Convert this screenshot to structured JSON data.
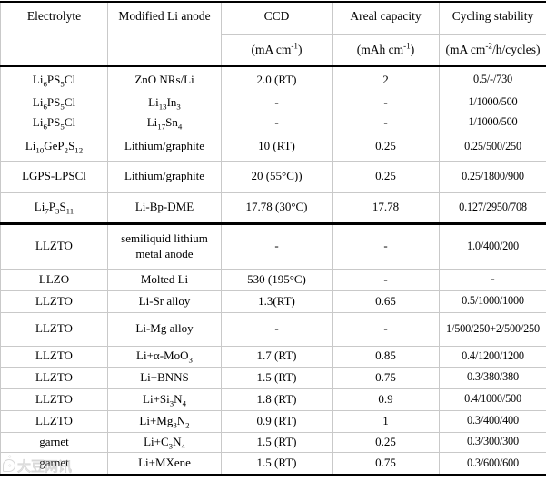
{
  "table": {
    "columns": [
      {
        "label": "Electrolyte",
        "unit": null
      },
      {
        "label": "Modified Li anode",
        "unit": null
      },
      {
        "label": "CCD",
        "unit": [
          [
            "t",
            "(mA cm"
          ],
          [
            "sup",
            "-1"
          ],
          [
            "t",
            ")"
          ]
        ]
      },
      {
        "label": "Areal capacity",
        "unit": [
          [
            "t",
            "(mAh cm"
          ],
          [
            "sup",
            "-1"
          ],
          [
            "t",
            ")"
          ]
        ]
      },
      {
        "label": "Cycling stability",
        "unit": [
          [
            "t",
            "(mA cm"
          ],
          [
            "sup",
            "-2"
          ],
          [
            "t",
            "/h/cycles)"
          ]
        ]
      }
    ],
    "rows": [
      {
        "group": 1,
        "electrolyte": [
          [
            "t",
            "Li"
          ],
          [
            "sub",
            "6"
          ],
          [
            "t",
            "PS"
          ],
          [
            "sub",
            "5"
          ],
          [
            "t",
            "Cl"
          ]
        ],
        "anode": "ZnO NRs/Li",
        "ccd": "2.0 (RT)",
        "areal": "2",
        "cycling": "0.5/-/730"
      },
      {
        "group": 1,
        "electrolyte": [
          [
            "t",
            "Li"
          ],
          [
            "sub",
            "6"
          ],
          [
            "t",
            "PS"
          ],
          [
            "sub",
            "5"
          ],
          [
            "t",
            "Cl"
          ]
        ],
        "anode": [
          [
            "t",
            "Li"
          ],
          [
            "sub",
            "13"
          ],
          [
            "t",
            "In"
          ],
          [
            "sub",
            "3"
          ]
        ],
        "ccd": "-",
        "areal": "-",
        "cycling": "1/1000/500"
      },
      {
        "group": 1,
        "electrolyte": [
          [
            "t",
            "Li"
          ],
          [
            "sub",
            "6"
          ],
          [
            "t",
            "PS"
          ],
          [
            "sub",
            "5"
          ],
          [
            "t",
            "Cl"
          ]
        ],
        "anode": [
          [
            "t",
            "Li"
          ],
          [
            "sub",
            "17"
          ],
          [
            "t",
            "Sn"
          ],
          [
            "sub",
            "4"
          ]
        ],
        "ccd": "-",
        "areal": "-",
        "cycling": "1/1000/500"
      },
      {
        "group": 1,
        "electrolyte": [
          [
            "t",
            "Li"
          ],
          [
            "sub",
            "10"
          ],
          [
            "t",
            "GeP"
          ],
          [
            "sub",
            "2"
          ],
          [
            "t",
            "S"
          ],
          [
            "sub",
            "12"
          ]
        ],
        "anode": "Lithium/graphite",
        "ccd": "10 (RT)",
        "areal": "0.25",
        "cycling": "0.25/500/250"
      },
      {
        "group": 1,
        "electrolyte": "LGPS-LPSCl",
        "anode": "Lithium/graphite",
        "ccd": "20 (55°C))",
        "areal": "0.25",
        "cycling": "0.25/1800/900"
      },
      {
        "group": 1,
        "electrolyte": [
          [
            "t",
            "Li"
          ],
          [
            "sub",
            "7"
          ],
          [
            "t",
            "P"
          ],
          [
            "sub",
            "3"
          ],
          [
            "t",
            "S"
          ],
          [
            "sub",
            "11"
          ]
        ],
        "anode": "Li-Bp-DME",
        "ccd": "17.78 (30°C)",
        "areal": "17.78",
        "cycling": "0.127/2950/708"
      },
      {
        "group": 2,
        "electrolyte": "LLZTO",
        "anode": "semiliquid lithium metal anode",
        "ccd": "-",
        "areal": "-",
        "cycling": "1.0/400/200"
      },
      {
        "group": 2,
        "electrolyte": "LLZO",
        "anode": "Molted Li",
        "ccd": "530 (195°C)",
        "areal": "-",
        "cycling": "-"
      },
      {
        "group": 2,
        "electrolyte": "LLZTO",
        "anode": "Li-Sr alloy",
        "ccd": "1.3(RT)",
        "areal": "0.65",
        "cycling": "0.5/1000/1000"
      },
      {
        "group": 2,
        "electrolyte": "LLZTO",
        "anode": "Li-Mg alloy",
        "ccd": "-",
        "areal": "-",
        "cycling": "1/500/250+2/500/250"
      },
      {
        "group": 2,
        "electrolyte": "LLZTO",
        "anode": [
          [
            "t",
            "Li+α-MoO"
          ],
          [
            "sub",
            "3"
          ]
        ],
        "ccd": "1.7 (RT)",
        "areal": "0.85",
        "cycling": "0.4/1200/1200"
      },
      {
        "group": 2,
        "electrolyte": "LLZTO",
        "anode": "Li+BNNS",
        "ccd": "1.5 (RT)",
        "areal": "0.75",
        "cycling": "0.3/380/380"
      },
      {
        "group": 2,
        "electrolyte": "LLZTO",
        "anode": [
          [
            "t",
            "Li+Si"
          ],
          [
            "sub",
            "3"
          ],
          [
            "t",
            "N"
          ],
          [
            "sub",
            "4"
          ]
        ],
        "ccd": "1.8 (RT)",
        "areal": "0.9",
        "cycling": "0.4/1000/500"
      },
      {
        "group": 2,
        "electrolyte": "LLZTO",
        "anode": [
          [
            "t",
            "Li+Mg"
          ],
          [
            "sub",
            "3"
          ],
          [
            "t",
            "N"
          ],
          [
            "sub",
            "2"
          ]
        ],
        "ccd": "0.9 (RT)",
        "areal": "1",
        "cycling": "0.3/400/400"
      },
      {
        "group": 2,
        "electrolyte": "garnet",
        "anode": [
          [
            "t",
            "Li+C"
          ],
          [
            "sub",
            "3"
          ],
          [
            "t",
            "N"
          ],
          [
            "sub",
            "4"
          ]
        ],
        "ccd": "1.5 (RT)",
        "areal": "0.25",
        "cycling": "0.3/300/300"
      },
      {
        "group": 2,
        "electrolyte": "garnet",
        "anode": "Li+MXene",
        "ccd": "1.5 (RT)",
        "areal": "0.75",
        "cycling": "0.3/600/600"
      }
    ]
  },
  "watermark": {
    "logo_icon": "circle-logo",
    "text": "大豆网讯"
  },
  "colors": {
    "grid_line": "#c9c9c9",
    "thick_line": "#000000",
    "text": "#000000",
    "background": "#ffffff",
    "watermark": "#9a9a9a"
  }
}
